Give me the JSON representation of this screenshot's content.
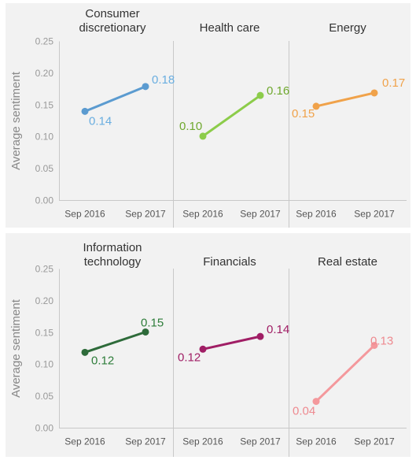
{
  "chart_data": [
    {
      "type": "line",
      "ylabel": "Average sentiment",
      "ylim": [
        0,
        0.25
      ],
      "yticks": [
        "0.25",
        "0.20",
        "0.15",
        "0.10",
        "0.05",
        "0.00"
      ],
      "grid": false,
      "panels": [
        {
          "title": [
            "Consumer",
            "discretionary"
          ],
          "color": "#5b9bd0",
          "label_color": "#6aaee0",
          "x": [
            "Sep 2016",
            "Sep 2017"
          ],
          "values": [
            0.14,
            0.179
          ],
          "data_labels": [
            "0.14",
            "0.18"
          ]
        },
        {
          "title": [
            "Health care"
          ],
          "color": "#8ccc4a",
          "label_color": "#6fa82e",
          "x": [
            "Sep 2016",
            "Sep 2017"
          ],
          "values": [
            0.101,
            0.165
          ],
          "data_labels": [
            "0.10",
            "0.16"
          ]
        },
        {
          "title": [
            "Energy"
          ],
          "color": "#f0a24a",
          "label_color": "#f0a24a",
          "x": [
            "Sep 2016",
            "Sep 2017"
          ],
          "values": [
            0.148,
            0.169
          ],
          "data_labels": [
            "0.15",
            "0.17"
          ]
        }
      ]
    },
    {
      "type": "line",
      "ylabel": "Average sentiment",
      "ylim": [
        0,
        0.25
      ],
      "yticks": [
        "0.25",
        "0.20",
        "0.15",
        "0.10",
        "0.05",
        "0.00"
      ],
      "grid": false,
      "panels": [
        {
          "title": [
            "Information",
            "technology"
          ],
          "color": "#2e6b3a",
          "label_color": "#2e7d3a",
          "x": [
            "Sep 2016",
            "Sep 2017"
          ],
          "values": [
            0.119,
            0.151
          ],
          "data_labels": [
            "0.12",
            "0.15"
          ]
        },
        {
          "title": [
            "Financials"
          ],
          "color": "#a01e65",
          "label_color": "#a01e65",
          "x": [
            "Sep 2016",
            "Sep 2017"
          ],
          "values": [
            0.124,
            0.144
          ],
          "data_labels": [
            "0.12",
            "0.14"
          ]
        },
        {
          "title": [
            "Real estate"
          ],
          "color": "#f4989c",
          "label_color": "#ee8a90",
          "x": [
            "Sep 2016",
            "Sep 2017"
          ],
          "values": [
            0.042,
            0.13
          ],
          "data_labels": [
            "0.04",
            "0.13"
          ]
        }
      ]
    }
  ]
}
